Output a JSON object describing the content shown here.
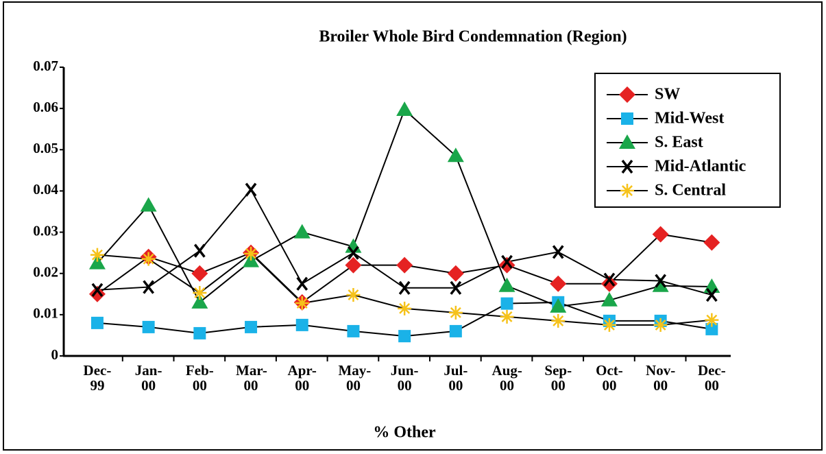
{
  "chart_data": {
    "type": "line",
    "title": "Broiler Whole Bird Condemnation (Region)",
    "x_label": "% Other",
    "categories": [
      "Dec-99",
      "Jan-00",
      "Feb-00",
      "Mar-00",
      "Apr-00",
      "May-00",
      "Jun-00",
      "Jul-00",
      "Aug-00",
      "Sep-00",
      "Oct-00",
      "Nov-00",
      "Dec-00"
    ],
    "ylim": [
      0,
      0.07
    ],
    "yticks": [
      0,
      0.01,
      0.02,
      0.03,
      0.04,
      0.05,
      0.06,
      0.07
    ],
    "legend": "upper right",
    "series": [
      {
        "name": "SW",
        "color": "#e52222",
        "marker": "diamond",
        "values": [
          0.015,
          0.024,
          0.02,
          0.025,
          0.013,
          0.022,
          0.022,
          0.02,
          0.022,
          0.0175,
          0.0175,
          0.0295,
          0.0275
        ]
      },
      {
        "name": "Mid-West",
        "color": "#1ab2e8",
        "marker": "square",
        "values": [
          0.008,
          0.007,
          0.0055,
          0.007,
          0.0075,
          0.006,
          0.0048,
          0.006,
          0.0127,
          0.013,
          0.0085,
          0.0085,
          0.0065
        ]
      },
      {
        "name": "S. East",
        "color": "#1aa64a",
        "marker": "triangle",
        "values": [
          0.0225,
          0.0365,
          0.013,
          0.023,
          0.03,
          0.0265,
          0.0597,
          0.0485,
          0.017,
          0.012,
          0.0135,
          0.017,
          0.0168
        ]
      },
      {
        "name": "Mid-Atlantic",
        "color": "#000000",
        "marker": "x",
        "values": [
          0.016,
          0.0167,
          0.0255,
          0.0403,
          0.0175,
          0.025,
          0.0165,
          0.0165,
          0.0228,
          0.0252,
          0.0185,
          0.0182,
          0.0148
        ]
      },
      {
        "name": "S. Central",
        "color": "#f6c21a",
        "marker": "star",
        "values": [
          0.0245,
          0.0235,
          0.0153,
          0.0248,
          0.0128,
          0.0148,
          0.0115,
          0.0105,
          0.0095,
          0.0085,
          0.0075,
          0.0075,
          0.0087
        ]
      }
    ]
  }
}
